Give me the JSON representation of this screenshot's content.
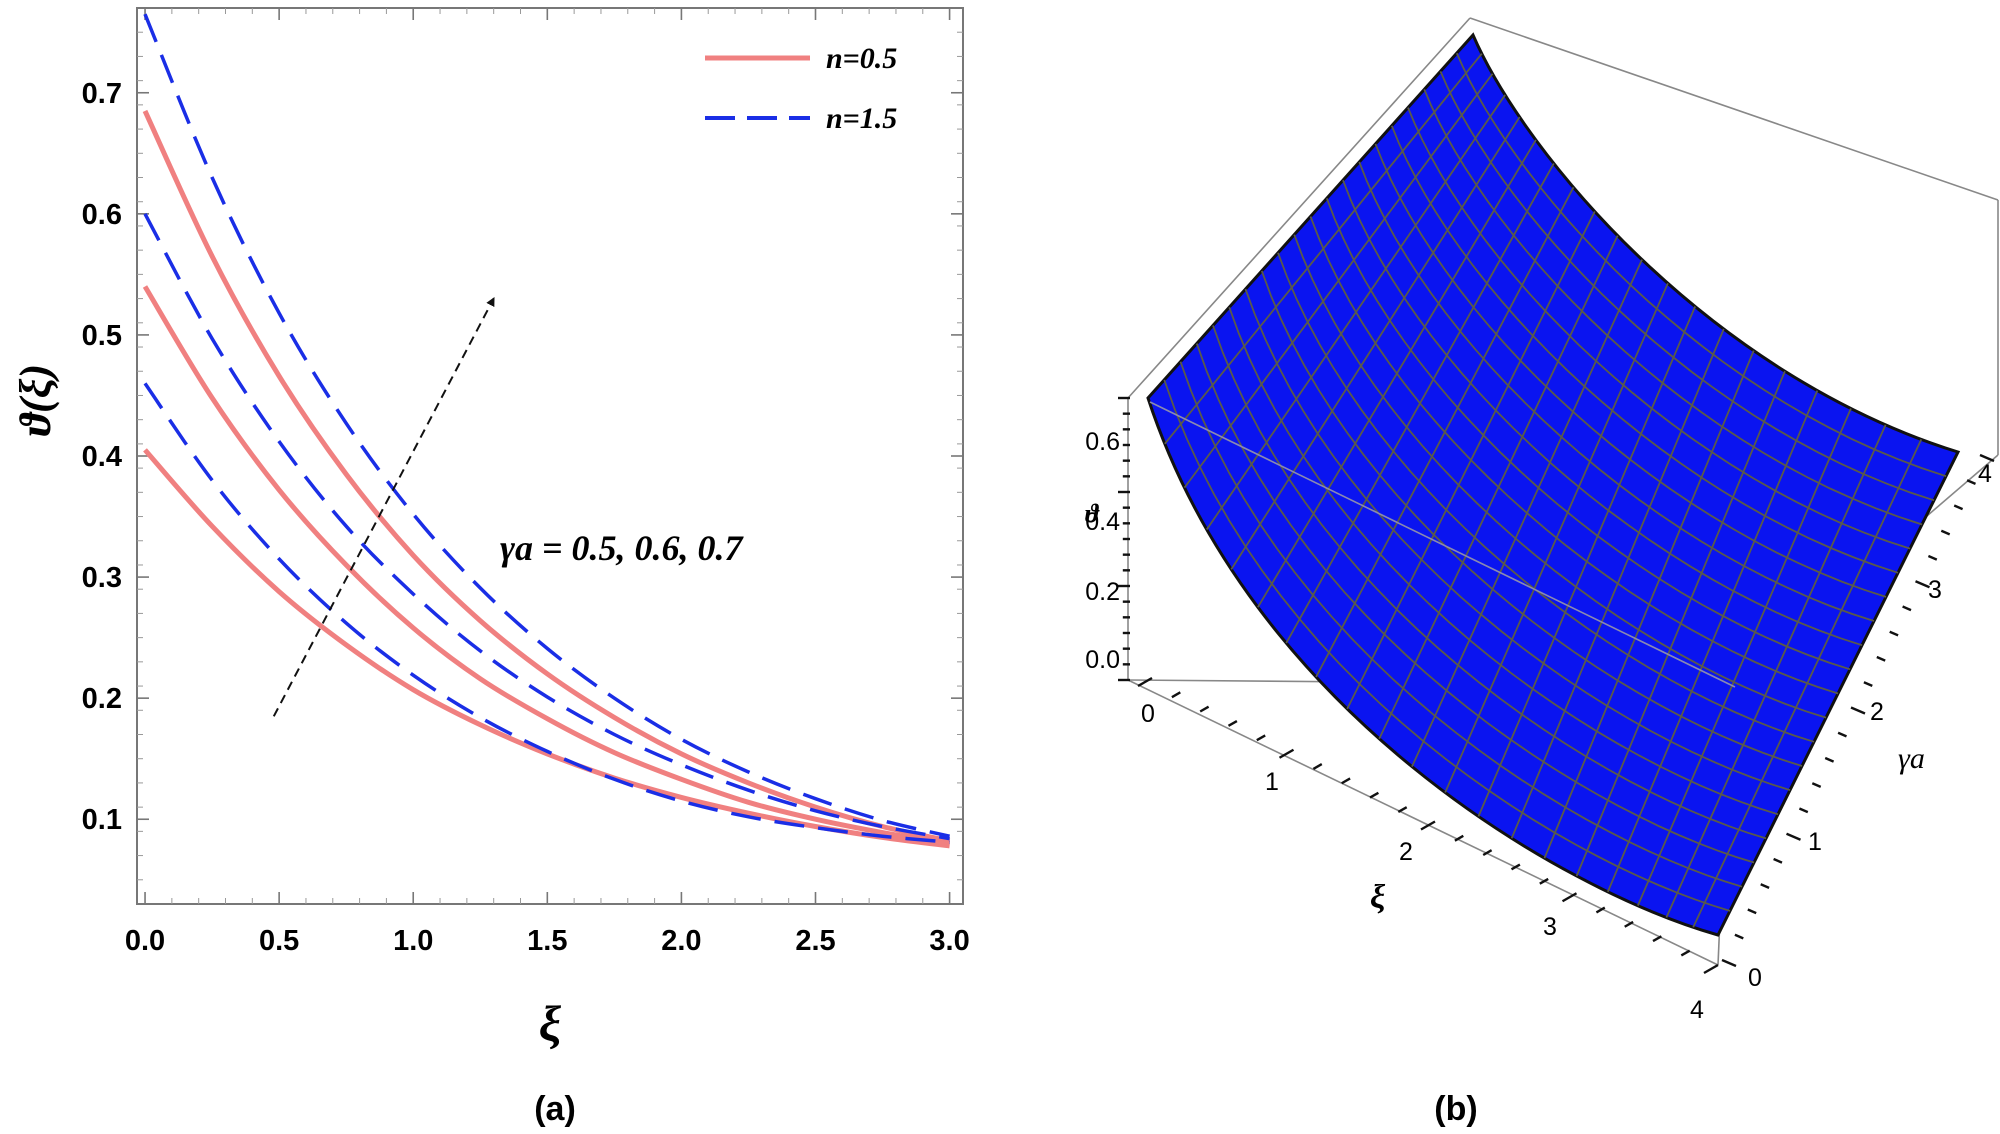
{
  "chart_data": [
    {
      "type": "line",
      "panel_label": "(a)",
      "xlabel": "ξ",
      "ylabel": "ϑ(ξ)",
      "xlim": [
        -0.03,
        3.05
      ],
      "ylim": [
        0.03,
        0.77
      ],
      "xticks": [
        "0.0",
        "0.5",
        "1.0",
        "1.5",
        "2.0",
        "2.5",
        "3.0"
      ],
      "yticks": [
        "0.1",
        "0.2",
        "0.3",
        "0.4",
        "0.5",
        "0.6",
        "0.7"
      ],
      "legend": {
        "position": "top-right",
        "entries": [
          "n=0.5",
          "n=1.5"
        ]
      },
      "annotation": "γa = 0.5, 0.6, 0.7",
      "arrow": {
        "from": [
          0.48,
          0.185
        ],
        "to": [
          1.3,
          0.53
        ]
      },
      "x": [
        0,
        0.25,
        0.5,
        0.75,
        1.0,
        1.25,
        1.5,
        1.75,
        2.0,
        2.25,
        2.5,
        2.75,
        3.0
      ],
      "series": [
        {
          "name": "n=0.5",
          "gamma_a": 0.5,
          "style": "solid",
          "color": "#f08080",
          "values": [
            0.405,
            0.342,
            0.288,
            0.244,
            0.207,
            0.178,
            0.154,
            0.134,
            0.118,
            0.105,
            0.094,
            0.085,
            0.078
          ]
        },
        {
          "name": "n=0.5",
          "gamma_a": 0.6,
          "style": "solid",
          "color": "#f08080",
          "values": [
            0.54,
            0.448,
            0.372,
            0.31,
            0.258,
            0.216,
            0.183,
            0.155,
            0.133,
            0.114,
            0.1,
            0.089,
            0.08
          ]
        },
        {
          "name": "n=0.5",
          "gamma_a": 0.7,
          "style": "solid",
          "color": "#f08080",
          "values": [
            0.685,
            0.565,
            0.466,
            0.385,
            0.318,
            0.264,
            0.22,
            0.184,
            0.154,
            0.13,
            0.11,
            0.094,
            0.082
          ]
        },
        {
          "name": "n=1.5",
          "gamma_a": 0.5,
          "style": "dashed",
          "color": "#1a2ee6",
          "values": [
            0.46,
            0.38,
            0.315,
            0.262,
            0.219,
            0.184,
            0.156,
            0.133,
            0.115,
            0.102,
            0.093,
            0.086,
            0.081
          ]
        },
        {
          "name": "n=1.5",
          "gamma_a": 0.6,
          "style": "dashed",
          "color": "#1a2ee6",
          "values": [
            0.6,
            0.497,
            0.412,
            0.342,
            0.286,
            0.239,
            0.201,
            0.17,
            0.145,
            0.124,
            0.107,
            0.094,
            0.084
          ]
        },
        {
          "name": "n=1.5",
          "gamma_a": 0.7,
          "style": "dashed",
          "color": "#1a2ee6",
          "values": [
            0.765,
            0.63,
            0.518,
            0.427,
            0.352,
            0.291,
            0.241,
            0.2,
            0.166,
            0.139,
            0.117,
            0.099,
            0.086
          ]
        }
      ]
    },
    {
      "type": "surface3d",
      "panel_label": "(b)",
      "xlabel": "ξ",
      "ylabel": "γa",
      "zlabel": "ϑ",
      "xticks": [
        "0",
        "1",
        "2",
        "3",
        "4"
      ],
      "yticks": [
        "0",
        "1",
        "2",
        "3",
        "4"
      ],
      "zticks": [
        "0.0",
        "0.2",
        "0.4",
        "0.6"
      ],
      "surface_color": "#0a14f0",
      "corner_values": {
        "xi0_gamma0": 0.7,
        "xi0_gamma4": 0.7,
        "xi4_gamma0": 0.0,
        "xi4_gamma4": 0.1
      }
    }
  ]
}
